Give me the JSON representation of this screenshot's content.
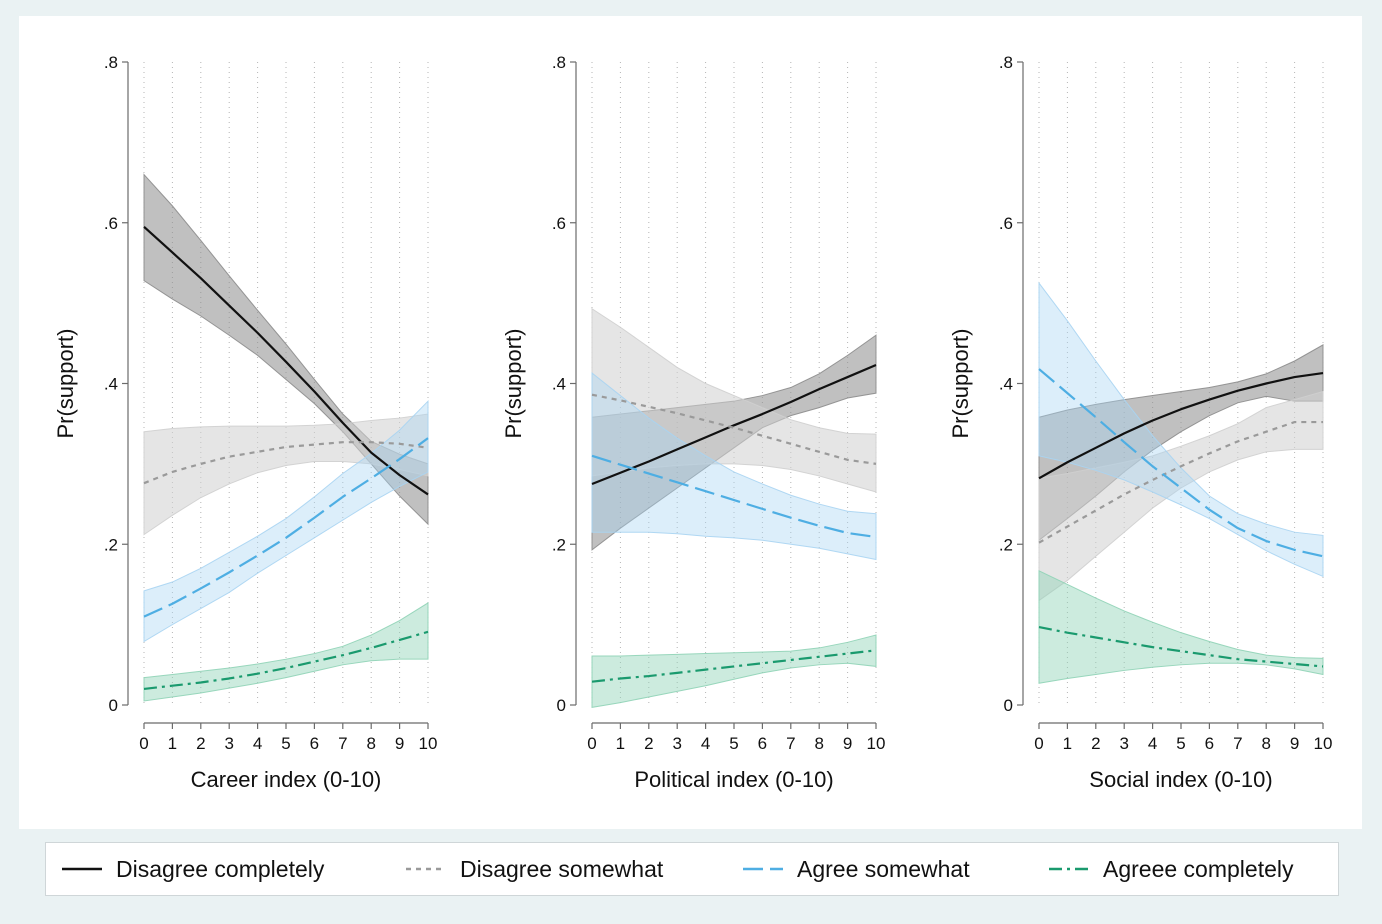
{
  "colors": {
    "background": "#eaf2f3",
    "panel": "#ffffff",
    "disagree_completely": "#111111",
    "disagree_somewhat": "#9a9a9a",
    "agree_somewhat": "#4eaee3",
    "agree_completely": "#1a9a6e",
    "band_dark": "#8c8c8c",
    "band_light": "#cfcfcf",
    "band_blue": "#a8d4f2",
    "band_green": "#8fd3b6"
  },
  "legend": {
    "items": [
      {
        "label": "Disagree completely",
        "color": "#111111",
        "dash": ""
      },
      {
        "label": "Disagree somewhat",
        "color": "#9a9a9a",
        "dash": "5,5"
      },
      {
        "label": "Agree somewhat",
        "color": "#4eaee3",
        "dash": "20,7"
      },
      {
        "label": "Agreee completely",
        "color": "#1a9a6e",
        "dash": "13,5,3,5"
      }
    ]
  },
  "chart_data": [
    {
      "type": "line",
      "title": "",
      "xlabel": "Career index (0-10)",
      "ylabel": "Pr(support)",
      "xlim": [
        0,
        10
      ],
      "ylim": [
        0,
        0.8
      ],
      "xticks": [
        "0",
        "1",
        "2",
        "3",
        "4",
        "5",
        "6",
        "7",
        "8",
        "9",
        "10"
      ],
      "yticks": [
        {
          "value": 0,
          "label": "0"
        },
        {
          "value": 0.2,
          "label": ".2"
        },
        {
          "value": 0.4,
          "label": ".4"
        },
        {
          "value": 0.6,
          "label": ".6"
        },
        {
          "value": 0.8,
          "label": ".8"
        }
      ],
      "grid": true,
      "x": [
        0,
        1,
        2,
        3,
        4,
        5,
        6,
        7,
        8,
        9,
        10
      ],
      "series": [
        {
          "name": "Disagree completely",
          "values": [
            0.595,
            0.563,
            0.531,
            0.497,
            0.463,
            0.427,
            0.39,
            0.351,
            0.314,
            0.286,
            0.262
          ],
          "lower": [
            0.528,
            0.505,
            0.484,
            0.46,
            0.435,
            0.405,
            0.375,
            0.34,
            0.3,
            0.26,
            0.225
          ],
          "upper": [
            0.66,
            0.621,
            0.578,
            0.534,
            0.491,
            0.449,
            0.405,
            0.362,
            0.328,
            0.312,
            0.3
          ]
        },
        {
          "name": "Disagree somewhat",
          "values": [
            0.276,
            0.29,
            0.3,
            0.309,
            0.315,
            0.321,
            0.324,
            0.327,
            0.327,
            0.325,
            0.32
          ],
          "lower": [
            0.212,
            0.236,
            0.258,
            0.275,
            0.289,
            0.298,
            0.303,
            0.303,
            0.3,
            0.293,
            0.285
          ],
          "upper": [
            0.34,
            0.344,
            0.346,
            0.347,
            0.347,
            0.347,
            0.348,
            0.35,
            0.354,
            0.357,
            0.362
          ]
        },
        {
          "name": "Agree somewhat",
          "values": [
            0.11,
            0.126,
            0.145,
            0.165,
            0.186,
            0.208,
            0.233,
            0.259,
            0.282,
            0.306,
            0.332
          ],
          "lower": [
            0.079,
            0.1,
            0.12,
            0.14,
            0.164,
            0.186,
            0.208,
            0.23,
            0.252,
            0.272,
            0.29
          ],
          "upper": [
            0.142,
            0.153,
            0.17,
            0.19,
            0.21,
            0.232,
            0.259,
            0.288,
            0.313,
            0.342,
            0.378
          ]
        },
        {
          "name": "Agreee completely",
          "values": [
            0.02,
            0.024,
            0.028,
            0.033,
            0.039,
            0.046,
            0.054,
            0.062,
            0.071,
            0.081,
            0.091
          ],
          "lower": [
            0.005,
            0.01,
            0.015,
            0.021,
            0.027,
            0.034,
            0.042,
            0.05,
            0.055,
            0.057,
            0.057
          ],
          "upper": [
            0.034,
            0.038,
            0.042,
            0.046,
            0.051,
            0.057,
            0.064,
            0.073,
            0.087,
            0.105,
            0.127
          ]
        }
      ]
    },
    {
      "type": "line",
      "title": "",
      "xlabel": "Political index (0-10)",
      "ylabel": "Pr(support)",
      "xlim": [
        0,
        10
      ],
      "ylim": [
        0,
        0.8
      ],
      "xticks": [
        "0",
        "1",
        "2",
        "3",
        "4",
        "5",
        "6",
        "7",
        "8",
        "9",
        "10"
      ],
      "yticks": [
        {
          "value": 0,
          "label": "0"
        },
        {
          "value": 0.2,
          "label": ".2"
        },
        {
          "value": 0.4,
          "label": ".4"
        },
        {
          "value": 0.6,
          "label": ".6"
        },
        {
          "value": 0.8,
          "label": ".8"
        }
      ],
      "grid": true,
      "x": [
        0,
        1,
        2,
        3,
        4,
        5,
        6,
        7,
        8,
        9,
        10
      ],
      "series": [
        {
          "name": "Disagree completely",
          "values": [
            0.275,
            0.289,
            0.303,
            0.318,
            0.333,
            0.348,
            0.362,
            0.377,
            0.393,
            0.408,
            0.423
          ],
          "lower": [
            0.193,
            0.22,
            0.245,
            0.27,
            0.295,
            0.32,
            0.345,
            0.36,
            0.37,
            0.382,
            0.388
          ],
          "upper": [
            0.358,
            0.362,
            0.366,
            0.37,
            0.374,
            0.378,
            0.385,
            0.395,
            0.412,
            0.435,
            0.46
          ]
        },
        {
          "name": "Disagree somewhat",
          "values": [
            0.386,
            0.379,
            0.371,
            0.363,
            0.354,
            0.345,
            0.335,
            0.325,
            0.315,
            0.305,
            0.3
          ],
          "lower": [
            0.285,
            0.29,
            0.295,
            0.298,
            0.3,
            0.3,
            0.298,
            0.293,
            0.285,
            0.275,
            0.265
          ],
          "upper": [
            0.493,
            0.47,
            0.445,
            0.42,
            0.4,
            0.385,
            0.37,
            0.355,
            0.345,
            0.338,
            0.337
          ]
        },
        {
          "name": "Agree somewhat",
          "values": [
            0.31,
            0.299,
            0.288,
            0.277,
            0.266,
            0.255,
            0.244,
            0.233,
            0.223,
            0.214,
            0.209
          ],
          "lower": [
            0.215,
            0.215,
            0.215,
            0.213,
            0.21,
            0.208,
            0.205,
            0.2,
            0.195,
            0.188,
            0.181
          ],
          "upper": [
            0.413,
            0.385,
            0.357,
            0.332,
            0.31,
            0.29,
            0.275,
            0.261,
            0.25,
            0.241,
            0.238
          ]
        },
        {
          "name": "Agreee completely",
          "values": [
            0.029,
            0.033,
            0.036,
            0.04,
            0.044,
            0.048,
            0.052,
            0.056,
            0.06,
            0.064,
            0.068
          ],
          "lower": [
            -0.003,
            0.003,
            0.01,
            0.017,
            0.024,
            0.032,
            0.04,
            0.046,
            0.05,
            0.052,
            0.048
          ],
          "upper": [
            0.061,
            0.061,
            0.062,
            0.063,
            0.064,
            0.065,
            0.066,
            0.067,
            0.071,
            0.078,
            0.087
          ]
        }
      ]
    },
    {
      "type": "line",
      "title": "",
      "xlabel": "Social index (0-10)",
      "ylabel": "Pr(support)",
      "xlim": [
        0,
        10
      ],
      "ylim": [
        0,
        0.8
      ],
      "xticks": [
        "0",
        "1",
        "2",
        "3",
        "4",
        "5",
        "6",
        "7",
        "8",
        "9",
        "10"
      ],
      "yticks": [
        {
          "value": 0,
          "label": "0"
        },
        {
          "value": 0.2,
          "label": ".2"
        },
        {
          "value": 0.4,
          "label": ".4"
        },
        {
          "value": 0.6,
          "label": ".6"
        },
        {
          "value": 0.8,
          "label": ".8"
        }
      ],
      "grid": true,
      "x": [
        0,
        1,
        2,
        3,
        4,
        5,
        6,
        7,
        8,
        9,
        10
      ],
      "series": [
        {
          "name": "Disagree completely",
          "values": [
            0.282,
            0.302,
            0.32,
            0.338,
            0.354,
            0.368,
            0.38,
            0.391,
            0.4,
            0.408,
            0.413
          ],
          "lower": [
            0.205,
            0.232,
            0.26,
            0.29,
            0.317,
            0.34,
            0.36,
            0.376,
            0.384,
            0.378,
            0.378
          ],
          "upper": [
            0.358,
            0.367,
            0.374,
            0.38,
            0.385,
            0.39,
            0.395,
            0.402,
            0.412,
            0.428,
            0.448
          ]
        },
        {
          "name": "Disagree somewhat",
          "values": [
            0.202,
            0.222,
            0.242,
            0.262,
            0.28,
            0.297,
            0.313,
            0.328,
            0.34,
            0.352,
            0.352
          ],
          "lower": [
            0.13,
            0.155,
            0.185,
            0.215,
            0.245,
            0.27,
            0.29,
            0.305,
            0.315,
            0.318,
            0.318
          ],
          "upper": [
            0.282,
            0.288,
            0.295,
            0.302,
            0.31,
            0.322,
            0.335,
            0.35,
            0.37,
            0.38,
            0.39
          ]
        },
        {
          "name": "Agree somewhat",
          "values": [
            0.418,
            0.388,
            0.358,
            0.327,
            0.297,
            0.27,
            0.243,
            0.22,
            0.204,
            0.193,
            0.185
          ],
          "lower": [
            0.31,
            0.302,
            0.292,
            0.28,
            0.265,
            0.249,
            0.232,
            0.212,
            0.192,
            0.175,
            0.16
          ],
          "upper": [
            0.525,
            0.478,
            0.428,
            0.38,
            0.335,
            0.295,
            0.26,
            0.238,
            0.225,
            0.215,
            0.211
          ]
        },
        {
          "name": "Agreee completely",
          "values": [
            0.097,
            0.09,
            0.084,
            0.078,
            0.072,
            0.067,
            0.062,
            0.057,
            0.054,
            0.051,
            0.048
          ],
          "lower": [
            0.027,
            0.033,
            0.038,
            0.043,
            0.047,
            0.05,
            0.052,
            0.052,
            0.05,
            0.045,
            0.038
          ],
          "upper": [
            0.167,
            0.15,
            0.133,
            0.117,
            0.103,
            0.09,
            0.079,
            0.069,
            0.062,
            0.059,
            0.058
          ]
        }
      ]
    }
  ]
}
